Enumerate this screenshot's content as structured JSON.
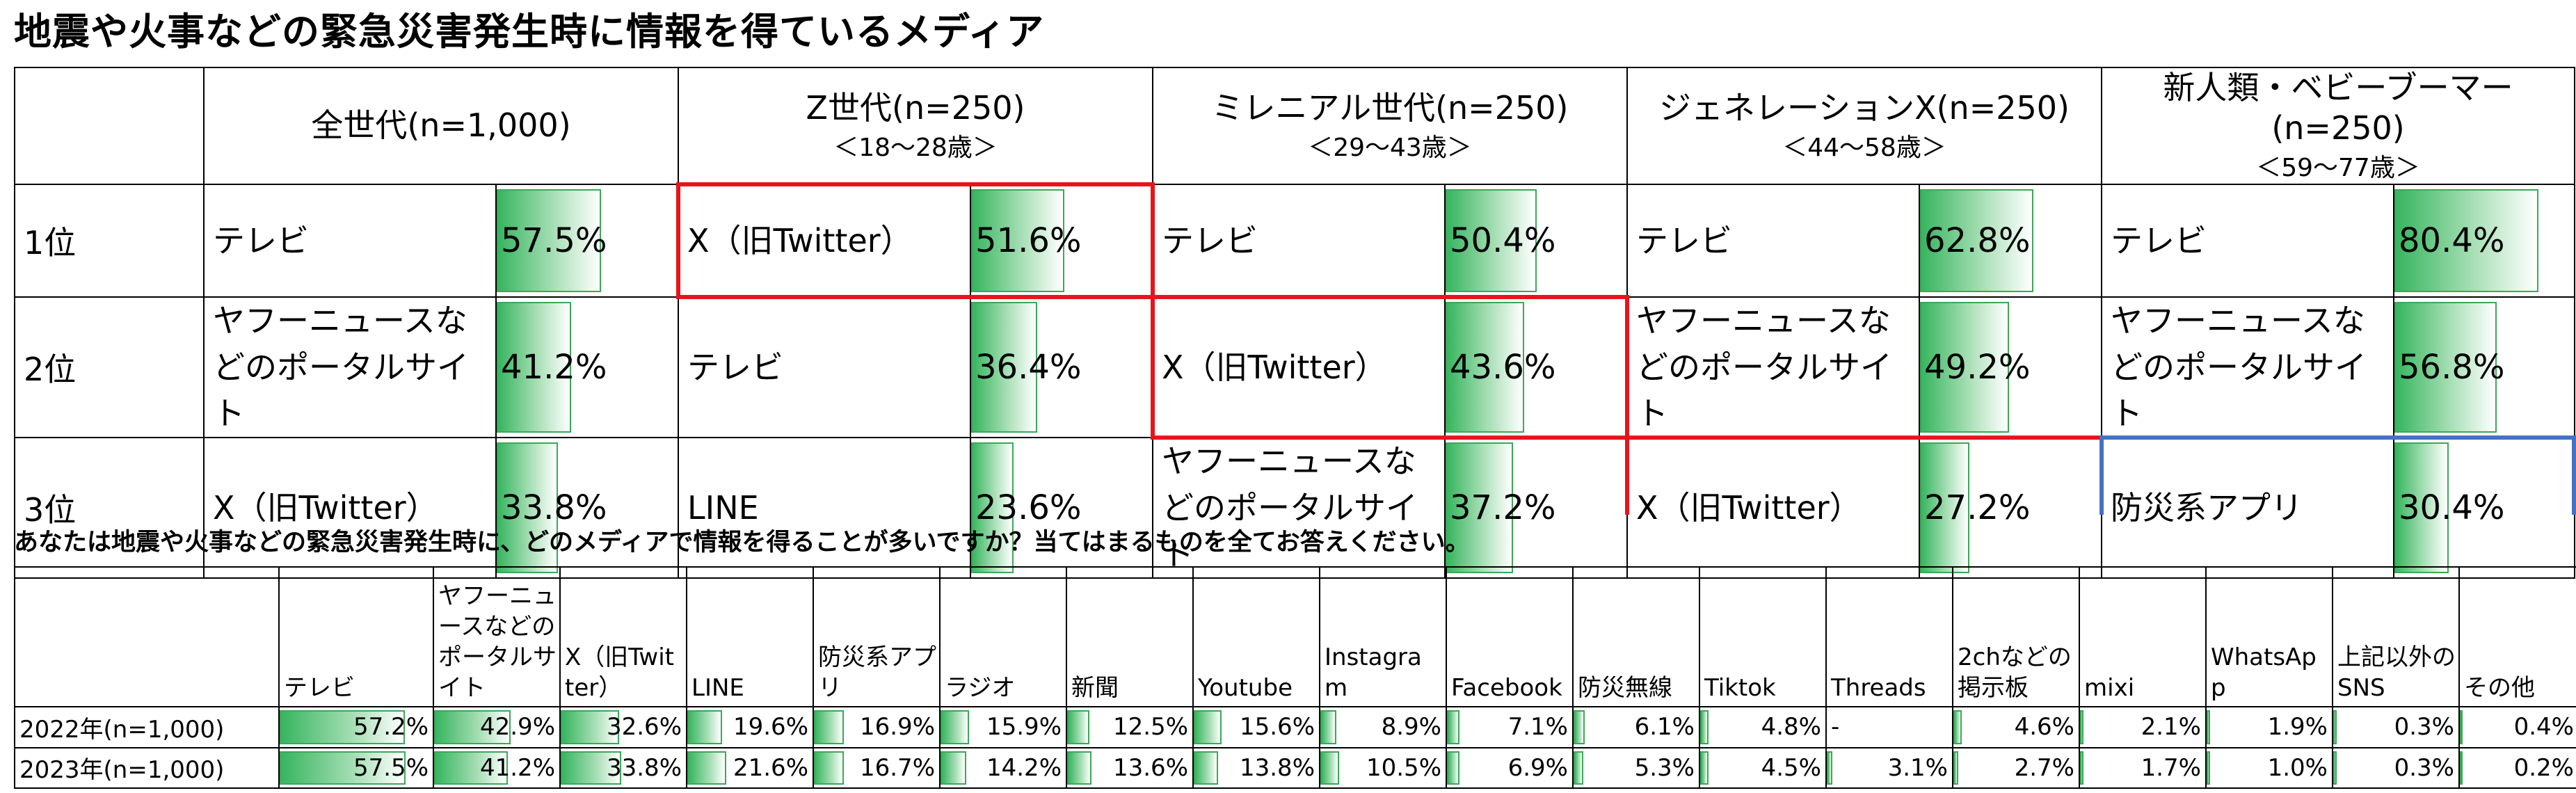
{
  "title": "地震や火事などの緊急災害発生時に情報を得ているメディア",
  "chart_data": [
    {
      "type": "table",
      "rank_labels": [
        "1位",
        "2位",
        "3位"
      ],
      "generations": [
        {
          "title": "全世代(n=1,000)",
          "age": "",
          "ranks": [
            {
              "media": "テレビ",
              "value": 57.5,
              "label": "57.5%"
            },
            {
              "media": "ヤフーニュースなどのポータルサイト",
              "value": 41.2,
              "label": "41.2%"
            },
            {
              "media": "X（旧Twitter）",
              "value": 33.8,
              "label": "33.8%"
            }
          ]
        },
        {
          "title": "Z世代(n=250)",
          "age": "＜18～28歳＞",
          "ranks": [
            {
              "media": "X（旧Twitter）",
              "value": 51.6,
              "label": "51.6%"
            },
            {
              "media": "テレビ",
              "value": 36.4,
              "label": "36.4%"
            },
            {
              "media": "LINE",
              "value": 23.6,
              "label": "23.6%"
            }
          ]
        },
        {
          "title": "ミレニアル世代(n=250)",
          "age": "＜29～43歳＞",
          "ranks": [
            {
              "media": "テレビ",
              "value": 50.4,
              "label": "50.4%"
            },
            {
              "media": "X（旧Twitter）",
              "value": 43.6,
              "label": "43.6%"
            },
            {
              "media": "ヤフーニュースなどのポータルサイト",
              "value": 37.2,
              "label": "37.2%"
            }
          ]
        },
        {
          "title": "ジェネレーションX(n=250)",
          "age": "＜44～58歳＞",
          "ranks": [
            {
              "media": "テレビ",
              "value": 62.8,
              "label": "62.8%"
            },
            {
              "media": "ヤフーニュースなどのポータルサイト",
              "value": 49.2,
              "label": "49.2%"
            },
            {
              "media": "X（旧Twitter）",
              "value": 27.2,
              "label": "27.2%"
            }
          ]
        },
        {
          "title": "新人類・ベビーブーマー(n=250)",
          "age": "＜59～77歳＞",
          "ranks": [
            {
              "media": "テレビ",
              "value": 80.4,
              "label": "80.4%"
            },
            {
              "media": "ヤフーニュースなどのポータルサイト",
              "value": 56.8,
              "label": "56.8%"
            },
            {
              "media": "防災系アプリ",
              "value": 30.4,
              "label": "30.4%"
            }
          ]
        }
      ],
      "highlight_colors": {
        "x_twitter": "#e8141c",
        "app": "#4472c4"
      }
    },
    {
      "type": "table",
      "question": "あなたは地震や火事などの緊急災害発生時に、どのメディアで情報を得ることが多いですか？当てはまるものを全てお答えください。",
      "categories": [
        "テレビ",
        "ヤフーニュースなどのポータルサイト",
        "X（旧Twitter）",
        "LINE",
        "防災系アプリ",
        "ラジオ",
        "新聞",
        "Youtube",
        "Instagram",
        "Facebook",
        "防災無線",
        "Tiktok",
        "Threads",
        "2chなどの掲示板",
        "mixi",
        "WhatsApp",
        "上記以外のSNS",
        "その他"
      ],
      "series": [
        {
          "name": "2022年(n=1,000)",
          "values": [
            57.2,
            42.9,
            32.6,
            19.6,
            16.9,
            15.9,
            12.5,
            15.6,
            8.9,
            7.1,
            6.1,
            4.8,
            null,
            4.6,
            2.1,
            1.9,
            0.3,
            0.4
          ],
          "labels": [
            "57.2%",
            "42.9%",
            "32.6%",
            "19.6%",
            "16.9%",
            "15.9%",
            "12.5%",
            "15.6%",
            "8.9%",
            "7.1%",
            "6.1%",
            "4.8%",
            "-",
            "4.6%",
            "2.1%",
            "1.9%",
            "0.3%",
            "0.4%"
          ]
        },
        {
          "name": "2023年(n=1,000)",
          "values": [
            57.5,
            41.2,
            33.8,
            21.6,
            16.7,
            14.2,
            13.6,
            13.8,
            10.5,
            6.9,
            5.3,
            4.5,
            3.1,
            2.7,
            1.7,
            1.0,
            0.3,
            0.2
          ],
          "labels": [
            "57.5%",
            "41.2%",
            "33.8%",
            "21.6%",
            "16.7%",
            "14.2%",
            "13.6%",
            "13.8%",
            "10.5%",
            "6.9%",
            "5.3%",
            "4.5%",
            "3.1%",
            "2.7%",
            "1.7%",
            "1.0%",
            "0.3%",
            "0.2%"
          ]
        }
      ],
      "bar_color": "#37b55f"
    }
  ]
}
